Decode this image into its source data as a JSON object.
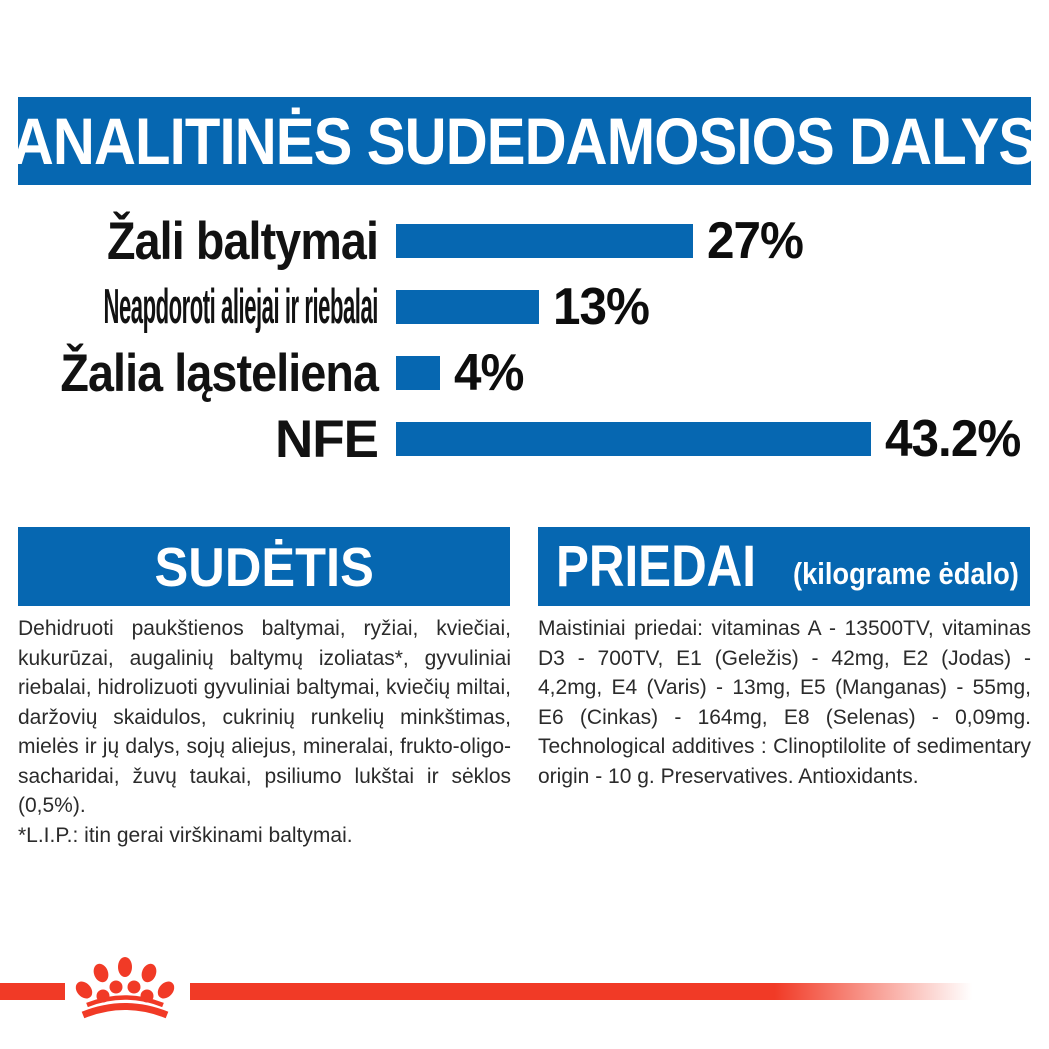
{
  "banner": {
    "title": "ANALITINĖS SUDEDAMOSIOS DALYS"
  },
  "chart_data": {
    "type": "bar",
    "orientation": "horizontal",
    "title": "ANALITINĖS SUDEDAMOSIOS DALYS",
    "categories": [
      "Žali baltymai",
      "Neapdoroti aliejai ir riebalai",
      "Žalia ląsteliena",
      "NFE"
    ],
    "values": [
      27,
      13,
      4,
      43.2
    ],
    "value_labels": [
      "27%",
      "13%",
      "4%",
      "43.2%"
    ],
    "bar_color": "#0667b1",
    "xlim": [
      0,
      46
    ],
    "grid": false,
    "legend": false
  },
  "sections": {
    "sudetis": {
      "title": "SUDĖTIS",
      "body": "Dehidruoti paukštienos baltymai, ryžiai, kviečiai, kukurūzai, augalinių baltymų izoliatas*, gyvuliniai riebalai, hidrolizuoti gyvuliniai baltymai, kviečių miltai, daržovių skaidulos, cukrinių runkelių minkštimas, mielės ir jų dalys, sojų aliejus, mineralai, frukto-oligo-sacharidai, žuvų taukai, psiliumo lukštai ir sėklos (0,5%).",
      "note": "*L.I.P.: itin gerai virškinami baltymai."
    },
    "priedai": {
      "title": "PRIEDAI",
      "subtitle": "(kilograme ėdalo)",
      "body": "Maistiniai priedai: vitaminas A - 13500TV, vitaminas D3 - 700TV, E1 (Geležis) - 42mg, E2 (Jodas) - 4,2mg, E4 (Varis) - 13mg, E5 (Manganas) - 55mg, E6 (Cinkas) - 164mg, E8 (Selenas) - 0,09mg. Technological additives : Clinoptilolite of sedimentary origin - 10 g. Preservatives. Antioxidants."
    }
  },
  "logo": {
    "name": "royal-canin-crown"
  },
  "colors": {
    "blue": "#0667b1",
    "red": "#f13a26",
    "text": "#2b2b2b"
  }
}
